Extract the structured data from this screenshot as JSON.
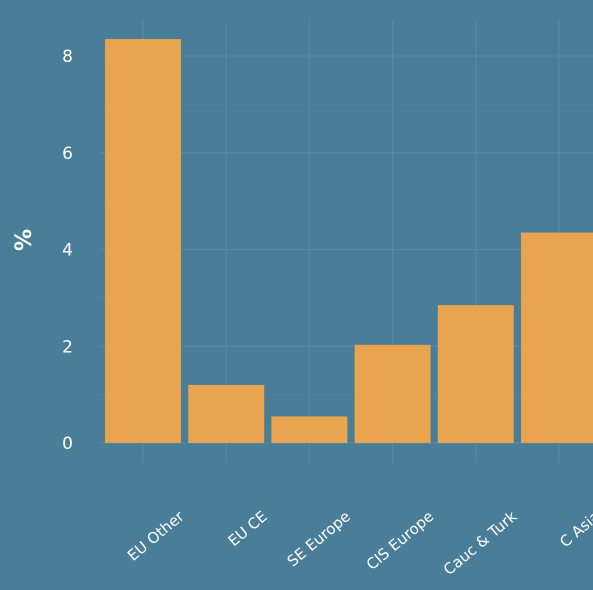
{
  "chart_data": {
    "type": "bar",
    "title": "",
    "xlabel": "",
    "ylabel": "%",
    "categories": [
      "EU Other",
      "EU CE",
      "SE Europe",
      "CIS Europe",
      "Cauc & Turk",
      "C Asia"
    ],
    "values": [
      8.35,
      1.2,
      0.55,
      2.03,
      2.85,
      4.35
    ],
    "ylim": [
      0,
      8.5
    ],
    "yticks": [
      0,
      2,
      4,
      6,
      8
    ],
    "grid": true,
    "colors": {
      "background": "#4a7e98",
      "bar": "#e8a44e",
      "grid": "#5a8aa3",
      "text": "#ffffff"
    }
  }
}
